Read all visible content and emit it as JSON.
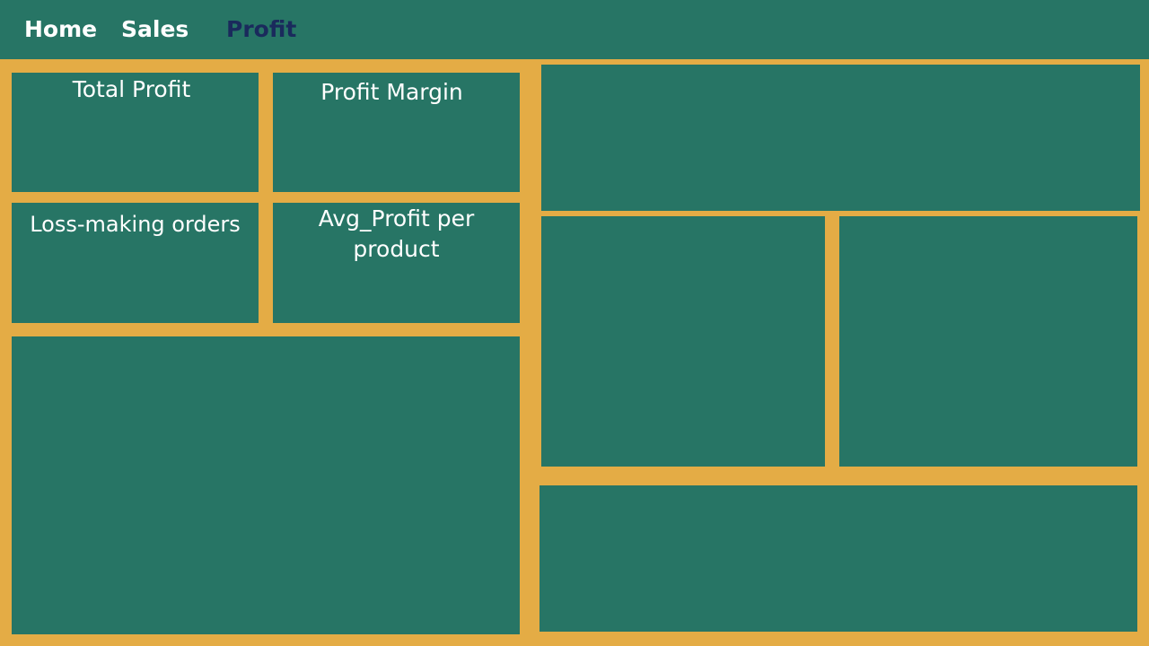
{
  "nav": {
    "tabs": [
      {
        "label": "Home"
      },
      {
        "label": "Sales"
      },
      {
        "label": "Profit"
      }
    ],
    "active_tab": "Profit"
  },
  "kpis": {
    "total_profit": {
      "label": "Total Profit"
    },
    "profit_margin": {
      "label": "Profit Margin"
    },
    "loss_orders": {
      "label": "Loss-making orders"
    },
    "avg_profit": {
      "label": "Avg_Profit per product"
    }
  },
  "colors": {
    "background": "#e4ac45",
    "panel": "#277565",
    "text": "#ffffff",
    "active_tab": "#1a2a5c"
  }
}
